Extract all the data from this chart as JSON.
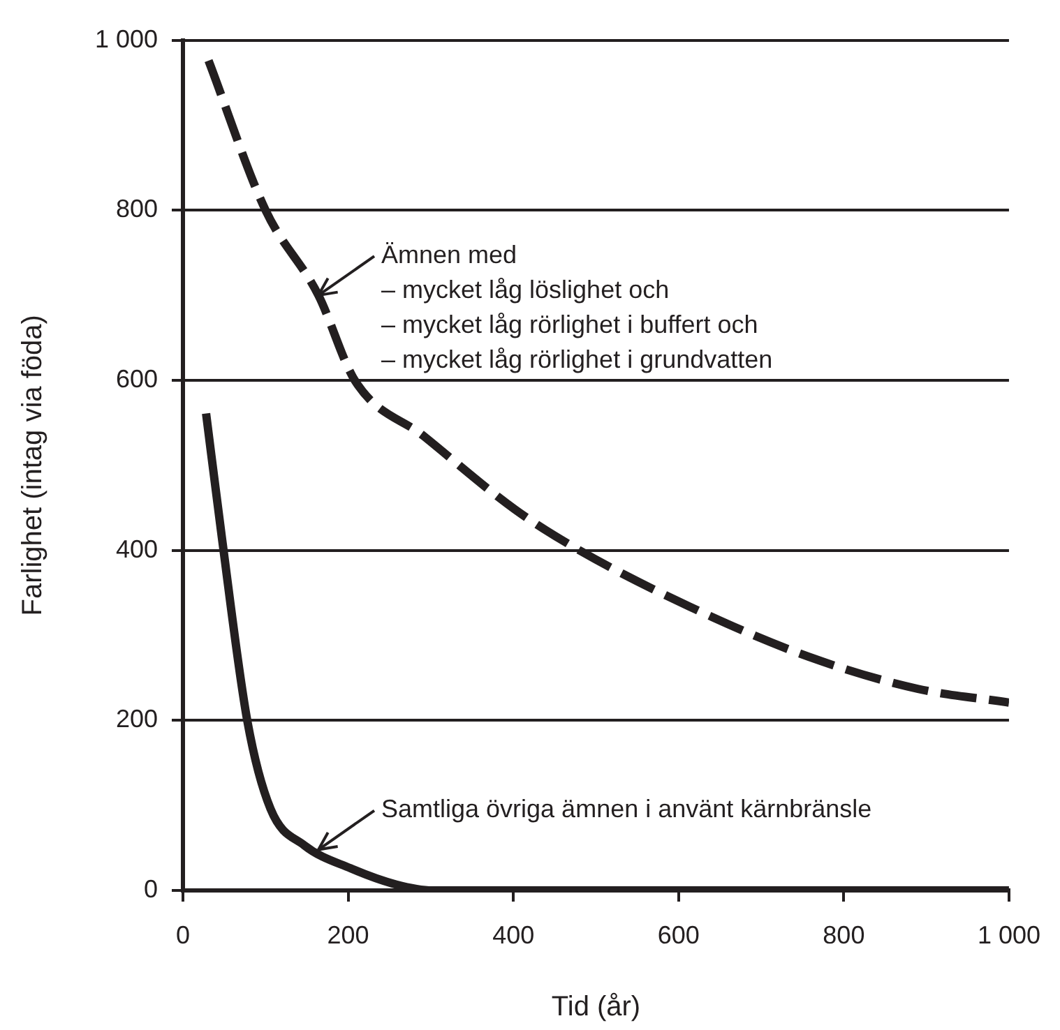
{
  "chart_data": {
    "type": "line",
    "xlabel": "Tid (år)",
    "ylabel": "Farlighet (intag via föda)",
    "xlim": [
      0,
      1000
    ],
    "xticks": [
      0,
      200,
      400,
      600,
      800,
      {
        "value": 1000,
        "label": "1 000"
      }
    ],
    "ylim": [
      0,
      1000
    ],
    "yticks": [
      0,
      200,
      400,
      600,
      800,
      {
        "value": 1000,
        "label": "1 000"
      }
    ],
    "grid": "y",
    "legend": false,
    "marker": "none",
    "series": [
      {
        "color": "#231f20",
        "line_style": "dashed",
        "x": [
          31,
          100,
          164,
          208,
          292,
          402,
          480,
          613,
          757,
          890,
          1000
        ],
        "values": [
          976,
          800,
          700,
          600,
          534,
          448,
          400,
          334,
          275,
          237,
          221
        ]
      },
      {
        "color": "#231f20",
        "line_style": "solid",
        "x": [
          28,
          47,
          78,
          106,
          147,
          203,
          258,
          302,
          1000
        ],
        "values": [
          561,
          416,
          199,
          96,
          53,
          26,
          7,
          0,
          0
        ]
      }
    ],
    "annotations": [
      {
        "text": "Ämnen med\n– mycket låg löslighet och\n– mycket låg rörlighet i buffert och\n– mycket låg rörlighet i grundvatten",
        "x": 164,
        "y": 700
      },
      {
        "text": "Samtliga övriga ämnen i använt kärnbränsle",
        "x": 164,
        "y": 48
      }
    ]
  }
}
